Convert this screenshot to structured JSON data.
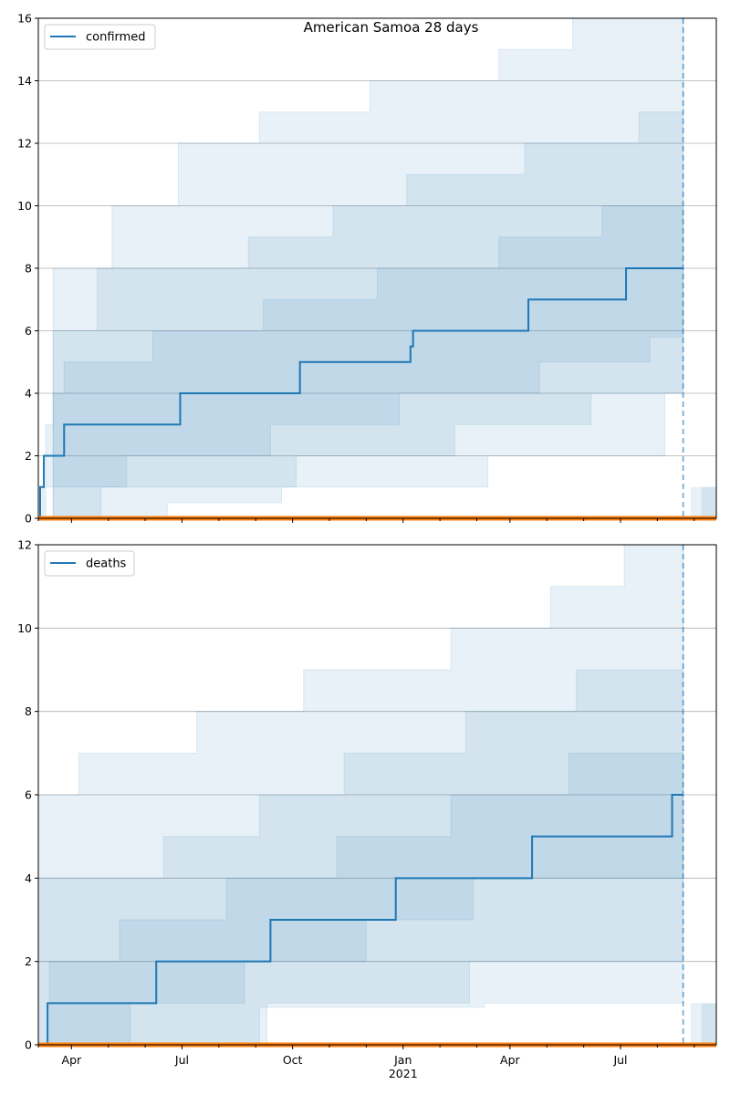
{
  "chart_data": [
    {
      "type": "line",
      "title": "American Samoa 28 days",
      "xlabel": "",
      "ylabel": "",
      "x_range_days": [
        0,
        184
      ],
      "x_tick_labels": [
        {
          "label": "Apr",
          "day": 9
        },
        {
          "label": "Jul",
          "day": 39
        },
        {
          "label": "Oct",
          "day": 69
        },
        {
          "label": "Jan\n2021",
          "day": 99
        },
        {
          "label": "Apr",
          "day": 128
        },
        {
          "label": "Jul",
          "day": 158
        }
      ],
      "x_minor_tick_days": [
        0,
        19,
        29,
        49,
        59,
        79,
        89,
        109,
        119,
        138,
        148,
        168,
        178
      ],
      "ylim": [
        0,
        16
      ],
      "y_ticks": [
        0,
        2,
        4,
        6,
        8,
        10,
        12,
        14,
        16
      ],
      "grid": "horizontal",
      "vline_day": 175,
      "legend": {
        "entry": "confirmed",
        "placement": "top-left"
      },
      "series": [
        {
          "name": "confirmed",
          "color": "#1f77b4",
          "steps": [
            [
              0,
              0
            ],
            [
              0.5,
              1
            ],
            [
              1.5,
              2
            ],
            [
              7,
              3
            ],
            [
              38.5,
              4
            ],
            [
              71,
              5
            ],
            [
              101,
              5.5
            ],
            [
              101.7,
              6
            ],
            [
              133,
              7
            ],
            [
              159.5,
              8
            ],
            [
              175,
              8
            ]
          ]
        },
        {
          "name": "zero-baseline",
          "color": "#ff7f0e",
          "steps": [
            [
              0,
              0
            ],
            [
              184,
              0
            ]
          ]
        }
      ],
      "bands": [
        {
          "steps": [
            [
              0,
              0
            ],
            [
              2,
              3
            ],
            [
              4,
              4
            ],
            [
              7,
              5
            ],
            [
              31,
              6
            ],
            [
              61,
              7
            ],
            [
              92,
              8
            ],
            [
              125,
              9
            ],
            [
              153,
              10
            ],
            [
              175,
              10
            ]
          ],
          "steps_lower": [
            [
              0,
              0
            ],
            [
              1,
              1
            ],
            [
              24,
              2
            ],
            [
              63,
              3
            ],
            [
              98,
              4
            ],
            [
              136,
              5
            ],
            [
              166,
              5.8
            ],
            [
              175,
              6
            ]
          ]
        },
        {
          "steps": [
            [
              0,
              0
            ],
            [
              4,
              6
            ],
            [
              16,
              8
            ],
            [
              57,
              9
            ],
            [
              80,
              10
            ],
            [
              100,
              11
            ],
            [
              132,
              12
            ],
            [
              163,
              13
            ],
            [
              175,
              16
            ]
          ],
          "steps_lower": [
            [
              0,
              0
            ],
            [
              17,
              1
            ],
            [
              70,
              2
            ],
            [
              113,
              3
            ],
            [
              150,
              4
            ],
            [
              175,
              4
            ]
          ]
        },
        {
          "steps": [
            [
              0,
              0
            ],
            [
              4,
              8
            ],
            [
              20,
              10
            ],
            [
              38,
              12
            ],
            [
              60,
              13
            ],
            [
              90,
              14
            ],
            [
              125,
              15
            ],
            [
              145,
              16
            ],
            [
              175,
              16
            ]
          ],
          "steps_lower": [
            [
              0,
              0
            ],
            [
              35,
              0.5
            ],
            [
              66,
              1
            ],
            [
              122,
              2
            ],
            [
              170,
              4
            ],
            [
              175,
              6
            ]
          ]
        }
      ]
    },
    {
      "type": "line",
      "title": "",
      "xlabel": "",
      "ylabel": "",
      "x_range_days": [
        0,
        184
      ],
      "x_tick_labels": [
        {
          "label": "Apr",
          "day": 9
        },
        {
          "label": "Jul",
          "day": 39
        },
        {
          "label": "Oct",
          "day": 69
        },
        {
          "label": "Jan\n2021",
          "day": 99
        },
        {
          "label": "Apr",
          "day": 128
        },
        {
          "label": "Jul",
          "day": 158
        }
      ],
      "x_minor_tick_days": [
        0,
        19,
        29,
        49,
        59,
        79,
        89,
        109,
        119,
        138,
        148,
        168,
        178
      ],
      "ylim": [
        0,
        12
      ],
      "y_ticks": [
        0,
        2,
        4,
        6,
        8,
        10,
        12
      ],
      "grid": "horizontal",
      "vline_day": 175,
      "legend": {
        "entry": "deaths",
        "placement": "top-left"
      },
      "series": [
        {
          "name": "deaths",
          "color": "#1f77b4",
          "steps": [
            [
              0,
              0
            ],
            [
              2.5,
              1
            ],
            [
              32,
              2
            ],
            [
              63,
              3
            ],
            [
              97,
              4
            ],
            [
              134,
              5
            ],
            [
              172,
              6
            ],
            [
              175,
              6
            ]
          ]
        },
        {
          "name": "zero-baseline",
          "color": "#ff7f0e",
          "steps": [
            [
              0,
              0
            ],
            [
              184,
              0
            ]
          ]
        }
      ],
      "bands": [
        {
          "steps": [
            [
              0,
              0
            ],
            [
              3,
              2
            ],
            [
              22,
              3
            ],
            [
              51,
              4
            ],
            [
              81,
              5
            ],
            [
              112,
              6
            ],
            [
              144,
              7
            ],
            [
              175,
              7
            ]
          ],
          "steps_lower": [
            [
              0,
              0
            ],
            [
              25,
              1
            ],
            [
              56,
              2
            ],
            [
              89,
              3
            ],
            [
              118,
              4
            ],
            [
              158,
              4
            ],
            [
              175,
              5
            ]
          ]
        },
        {
          "steps": [
            [
              0,
              4
            ],
            [
              10,
              4
            ],
            [
              34,
              5
            ],
            [
              60,
              6
            ],
            [
              83,
              7
            ],
            [
              116,
              8
            ],
            [
              146,
              9
            ],
            [
              175,
              12
            ]
          ],
          "steps_lower": [
            [
              0,
              0
            ],
            [
              62,
              1
            ],
            [
              117,
              2
            ],
            [
              175,
              3
            ]
          ]
        },
        {
          "steps": [
            [
              0,
              6
            ],
            [
              11,
              7
            ],
            [
              43,
              8
            ],
            [
              72,
              9
            ],
            [
              112,
              10
            ],
            [
              139,
              11
            ],
            [
              159,
              12
            ],
            [
              175,
              12
            ]
          ],
          "steps_lower": [
            [
              0,
              0
            ],
            [
              60,
              0.9
            ],
            [
              121,
              1
            ],
            [
              175,
              1
            ]
          ]
        }
      ]
    }
  ]
}
